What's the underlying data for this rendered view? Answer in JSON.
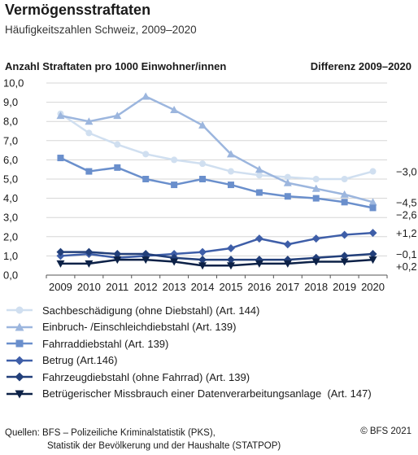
{
  "header": {
    "title": "Vermögensstraftaten",
    "subtitle": "Häufigkeitszahlen Schweiz, 2009–2020"
  },
  "chart_data": {
    "type": "line",
    "title": "Vermögensstraftaten",
    "subtitle": "Häufigkeitszahlen Schweiz, 2009–2020",
    "ylabel": "Anzahl Straftaten pro 1000 Einwohner/innen",
    "diff_label": "Differenz 2009–2020",
    "ylim": [
      0,
      10
    ],
    "yticks": [
      "0,0",
      "1,0",
      "2,0",
      "3,0",
      "4,0",
      "5,0",
      "6,0",
      "7,0",
      "8,0",
      "9,0",
      "10,0"
    ],
    "grid": true,
    "legend_position": "bottom",
    "x": [
      "2009",
      "2010",
      "2011",
      "2012",
      "2013",
      "2014",
      "2015",
      "2016",
      "2017",
      "2018",
      "2019",
      "2020"
    ],
    "series": [
      {
        "name": "Sachbeschädigung (ohne Diebstahl) (Art. 144)",
        "color": "#d0dff0",
        "marker": "circle",
        "values": [
          8.4,
          7.4,
          6.8,
          6.3,
          6.0,
          5.8,
          5.4,
          5.2,
          5.1,
          5.0,
          5.0,
          5.4
        ],
        "diff": "−3,0"
      },
      {
        "name": "Einbruch- /Einschleichdiebstahl (Art. 139)",
        "color": "#9cb6de",
        "marker": "triangle",
        "values": [
          8.3,
          8.0,
          8.3,
          9.3,
          8.6,
          7.8,
          6.3,
          5.5,
          4.8,
          4.5,
          4.2,
          3.8
        ],
        "diff": "−4,5"
      },
      {
        "name": "Fahrraddiebstahl (Art. 139)",
        "color": "#6a8fcc",
        "marker": "square",
        "values": [
          6.1,
          5.4,
          5.6,
          5.0,
          4.7,
          5.0,
          4.7,
          4.3,
          4.1,
          4.0,
          3.8,
          3.5
        ],
        "diff": "−2,6"
      },
      {
        "name": "Betrug (Art.146)",
        "color": "#3e5ea8",
        "marker": "diamond",
        "values": [
          1.0,
          1.1,
          0.9,
          1.0,
          1.1,
          1.2,
          1.4,
          1.9,
          1.6,
          1.9,
          2.1,
          2.2
        ],
        "diff": "+1,2"
      },
      {
        "name": "Fahrzeugdiebstahl (ohne Fahrrad) (Art. 139)",
        "color": "#223f7a",
        "marker": "diamond",
        "values": [
          1.2,
          1.2,
          1.1,
          1.1,
          0.9,
          0.8,
          0.8,
          0.8,
          0.8,
          0.9,
          1.0,
          1.1
        ],
        "diff": "−0,1"
      },
      {
        "name": "Betrügerischer Missbrauch einer Datenverarbeitungsanlage  (Art. 147)",
        "color": "#0c2147",
        "marker": "triangle-down",
        "values": [
          0.6,
          0.6,
          0.8,
          0.8,
          0.7,
          0.5,
          0.5,
          0.6,
          0.6,
          0.7,
          0.7,
          0.8
        ],
        "diff": "+0,2"
      }
    ]
  },
  "footer": {
    "source_line1": "Quellen: BFS – Polizeiliche Kriminalstatistik (PKS),",
    "source_line2": "Statistik der Bevölkerung und der Haushalte (STATPOP)",
    "copyright": "© BFS 2021"
  }
}
